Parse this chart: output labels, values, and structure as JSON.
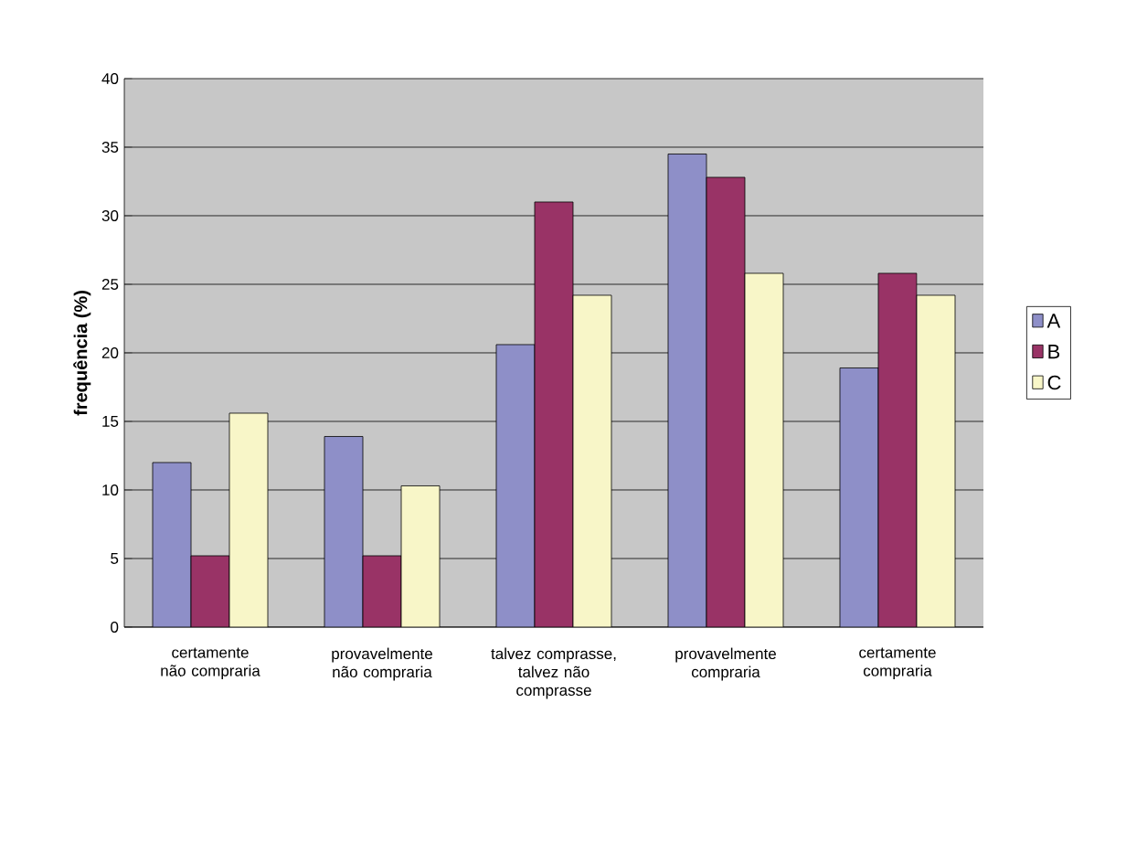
{
  "chart_data": {
    "type": "bar",
    "ylabel": "frequência (%)",
    "categories": [
      "certamente não compraria",
      "provavelmente não compraria",
      "talvez comprasse, talvez não comprasse",
      "provavelmente compraria",
      "certamente compraria"
    ],
    "series": [
      {
        "name": "A",
        "color": "#8e8fc8",
        "values": [
          12,
          13.9,
          20.6,
          34.5,
          18.9
        ]
      },
      {
        "name": "B",
        "color": "#993366",
        "values": [
          5.2,
          5.2,
          31,
          32.8,
          25.8
        ]
      },
      {
        "name": "C",
        "color": "#f8f6c8",
        "values": [
          15.6,
          10.3,
          24.2,
          25.8,
          24.2
        ]
      }
    ],
    "ylim": [
      0,
      40
    ],
    "yticks": [
      0,
      5,
      10,
      15,
      20,
      25,
      30,
      35,
      40
    ],
    "grid": "y",
    "legend": "right"
  }
}
